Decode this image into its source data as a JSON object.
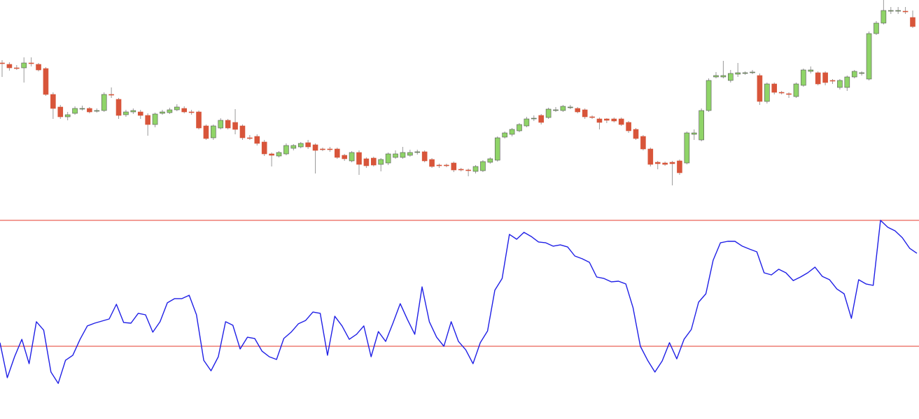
{
  "chart_data": [
    {
      "type": "candlestick",
      "open": [
        210,
        208,
        203,
        203,
        210,
        208,
        202,
        165,
        147,
        133,
        138,
        145,
        145,
        141,
        142,
        165,
        158,
        136,
        140,
        140,
        135,
        122,
        138,
        139,
        143,
        145,
        140,
        140,
        120,
        103,
        117,
        128,
        125,
        120,
        103,
        105,
        97,
        80,
        77,
        80,
        88,
        90,
        96,
        93,
        87,
        87,
        87,
        78,
        70,
        82,
        73,
        74,
        65,
        67,
        75,
        75,
        78,
        82,
        83,
        72,
        64,
        64,
        67,
        58,
        57,
        55,
        56,
        68,
        71,
        104,
        108,
        113,
        120,
        130,
        135,
        132,
        142,
        142,
        146,
        145,
        143,
        133,
        130,
        130,
        130,
        130,
        125,
        115,
        105,
        87,
        68,
        67,
        68,
        70,
        67,
        108,
        100,
        142,
        190,
        190,
        185,
        194,
        195,
        196,
        192,
        155,
        180,
        168,
        166,
        162,
        178,
        198,
        196,
        196,
        185,
        175,
        175,
        190,
        195,
        187,
        252,
        267,
        284,
        284,
        284,
        275
      ],
      "high": [
        214,
        211,
        207,
        218,
        218,
        210,
        204,
        168,
        150,
        140,
        148,
        149,
        147,
        145,
        168,
        175,
        160,
        143,
        145,
        143,
        138,
        139,
        143,
        146,
        151,
        148,
        143,
        142,
        122,
        122,
        131,
        130,
        144,
        122,
        107,
        108,
        100,
        82,
        84,
        95,
        94,
        97,
        100,
        95,
        89,
        90,
        89,
        80,
        84,
        85,
        75,
        76,
        74,
        82,
        85,
        90,
        86,
        86,
        85,
        74,
        66,
        66,
        69,
        60,
        59,
        64,
        71,
        75,
        105,
        112,
        117,
        124,
        133,
        135,
        137,
        146,
        147,
        150,
        150,
        147,
        145,
        135,
        132,
        131,
        132,
        132,
        127,
        117,
        107,
        89,
        70,
        69,
        70,
        72,
        112,
        115,
        145,
        188,
        197,
        213,
        200,
        210,
        198,
        200,
        195,
        182,
        182,
        170,
        168,
        182,
        202,
        205,
        198,
        198,
        187,
        187,
        192,
        200,
        198,
        255,
        270,
        300,
        290,
        290,
        290,
        285
      ],
      "low": [
        190,
        199,
        200,
        182,
        205,
        198,
        163,
        130,
        130,
        128,
        136,
        142,
        138,
        139,
        140,
        160,
        130,
        133,
        137,
        130,
        106,
        118,
        136,
        137,
        141,
        138,
        136,
        115,
        100,
        100,
        115,
        115,
        108,
        100,
        100,
        92,
        77,
        62,
        75,
        78,
        85,
        88,
        87,
        52,
        84,
        83,
        73,
        70,
        68,
        50,
        60,
        62,
        55,
        64,
        73,
        73,
        76,
        79,
        68,
        60,
        60,
        61,
        54,
        55,
        48,
        52,
        54,
        66,
        69,
        102,
        105,
        111,
        118,
        127,
        122,
        130,
        140,
        140,
        144,
        138,
        130,
        130,
        115,
        124,
        125,
        120,
        110,
        100,
        85,
        62,
        58,
        63,
        35,
        50,
        65,
        100,
        98,
        140,
        188,
        188,
        182,
        190,
        193,
        194,
        150,
        152,
        165,
        165,
        160,
        160,
        176,
        195,
        178,
        178,
        180,
        172,
        170,
        188,
        192,
        185,
        250,
        265,
        280,
        280,
        280,
        260
      ],
      "close": [
        209,
        203,
        202,
        210,
        209,
        200,
        165,
        145,
        133,
        136,
        145,
        145,
        140,
        142,
        165,
        164,
        135,
        140,
        142,
        135,
        122,
        137,
        140,
        143,
        147,
        140,
        139,
        117,
        102,
        120,
        128,
        117,
        115,
        103,
        102,
        95,
        80,
        78,
        82,
        92,
        92,
        95,
        90,
        85,
        86,
        86,
        75,
        73,
        82,
        65,
        63,
        64,
        72,
        80,
        80,
        82,
        82,
        83,
        70,
        62,
        63,
        63,
        57,
        57,
        56,
        62,
        69,
        73,
        103,
        110,
        115,
        122,
        130,
        131,
        125,
        144,
        143,
        148,
        147,
        140,
        133,
        132,
        125,
        128,
        127,
        122,
        113,
        102,
        87,
        65,
        66,
        65,
        66,
        53,
        110,
        110,
        142,
        185,
        192,
        192,
        195,
        196,
        196,
        197,
        155,
        180,
        168,
        167,
        165,
        180,
        200,
        200,
        180,
        182,
        184,
        185,
        190,
        198,
        196,
        252,
        267,
        285,
        285,
        285,
        283,
        262
      ],
      "ylim": [
        0,
        300
      ],
      "up_color": "#8fd468",
      "down_color": "#d8553a",
      "outline_color": "#555555",
      "wick_color": "#9a9a9a"
    },
    {
      "type": "line",
      "values": [
        21.7,
        5,
        15,
        23.3,
        11.7,
        31.7,
        27.7,
        7.7,
        2.3,
        13.3,
        15.7,
        23.3,
        29.7,
        31,
        32,
        33,
        40,
        31.3,
        31,
        35.7,
        35,
        26.7,
        31.7,
        40.7,
        42.7,
        42.7,
        44.3,
        35,
        13.3,
        8.3,
        15,
        31.7,
        30,
        18.7,
        24.3,
        23.7,
        17.7,
        15,
        13.7,
        23.7,
        26.7,
        30.7,
        32.3,
        36.3,
        35.7,
        15.7,
        34.3,
        29.7,
        23.3,
        25.7,
        29.7,
        15,
        27,
        22.3,
        31,
        40.3,
        32.7,
        25.7,
        48.3,
        31.7,
        24.3,
        20,
        31.7,
        22.3,
        18.3,
        11.7,
        21.7,
        27.3,
        46.7,
        52.3,
        73.3,
        71,
        74.3,
        72.3,
        69.7,
        69.3,
        67.7,
        68.3,
        67.3,
        63,
        61.7,
        60,
        53,
        52.3,
        50.7,
        51,
        49.7,
        38.3,
        20,
        13.3,
        7.7,
        13,
        21.7,
        14,
        23.3,
        28,
        41,
        45,
        61,
        69.3,
        70,
        70,
        67.7,
        66.3,
        65,
        55,
        54,
        56.7,
        55,
        51.3,
        53,
        55,
        57.7,
        53.3,
        51.7,
        47.3,
        45,
        33.3,
        51.7,
        49.7,
        49,
        80,
        76.7,
        75,
        71.7,
        66.7,
        64.3
      ],
      "color": "#1f1fe6",
      "ylim": [
        -15,
        85
      ],
      "levels": [
        80,
        20
      ],
      "level_color": "#e53b2c"
    }
  ]
}
